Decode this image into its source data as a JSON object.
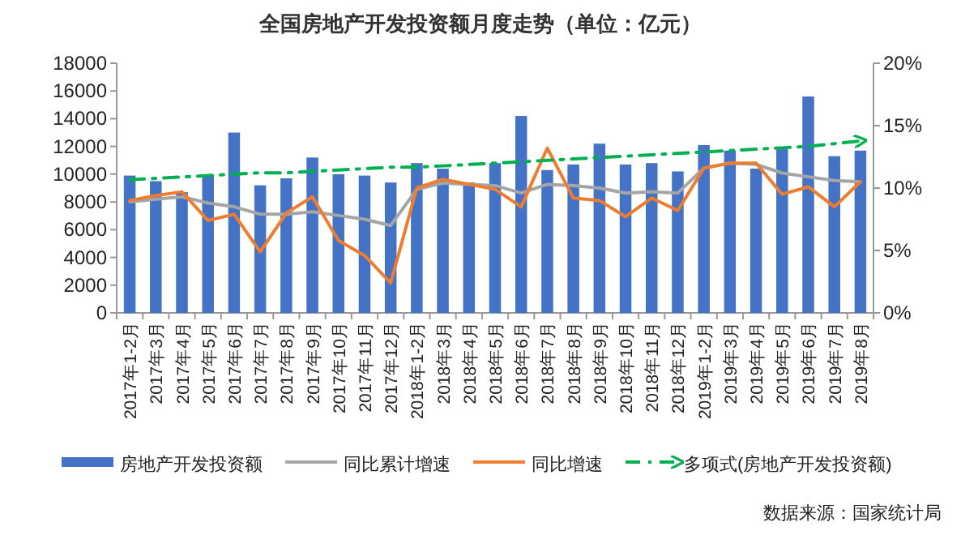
{
  "chart_data": {
    "type": "bar",
    "title": "全国房地产开发投资额月度走势（单位：亿元）",
    "categories": [
      "2017年1-2月",
      "2017年3月",
      "2017年4月",
      "2017年5月",
      "2017年6月",
      "2017年7月",
      "2017年8月",
      "2017年9月",
      "2017年10月",
      "2017年11月",
      "2017年12月",
      "2018年1-2月",
      "2018年3月",
      "2018年4月",
      "2018年5月",
      "2018年6月",
      "2018年7月",
      "2018年8月",
      "2018年9月",
      "2018年10月",
      "2018年11月",
      "2018年12月",
      "2019年1-2月",
      "2019年3月",
      "2019年4月",
      "2019年5月",
      "2019年6月",
      "2019年7月",
      "2019年8月"
    ],
    "series": [
      {
        "name": "房地产开发投资额",
        "color": "#4472c4",
        "values": [
          9900,
          9500,
          8700,
          9900,
          13000,
          9200,
          9700,
          11200,
          10000,
          9900,
          9400,
          10800,
          10400,
          9400,
          10800,
          14200,
          10300,
          10700,
          12200,
          10700,
          10800,
          10200,
          12100,
          11700,
          10400,
          11800,
          15600,
          11300,
          11700
        ]
      },
      {
        "name": "同比累计增速",
        "type": "line",
        "axis": "y2",
        "color": "#a5a5a5",
        "line_style": "solid",
        "values": [
          8.9,
          9.1,
          9.3,
          8.8,
          8.5,
          7.9,
          7.9,
          8.1,
          7.8,
          7.5,
          7.0,
          9.9,
          10.4,
          10.3,
          10.2,
          9.6,
          10.3,
          10.2,
          10.0,
          9.6,
          9.7,
          9.6,
          11.6,
          12.0,
          11.9,
          11.2,
          10.9,
          10.6,
          10.5
        ]
      },
      {
        "name": "同比增速",
        "type": "line",
        "axis": "y2",
        "color": "#ed7d31",
        "line_style": "solid",
        "values": [
          9.0,
          9.4,
          9.7,
          7.4,
          7.9,
          4.9,
          8.0,
          9.3,
          5.8,
          4.6,
          2.4,
          10.0,
          10.7,
          10.3,
          9.9,
          8.5,
          13.2,
          9.2,
          9.0,
          7.7,
          9.2,
          8.2,
          11.6,
          12.0,
          12.0,
          9.5,
          10.1,
          8.5,
          10.5
        ]
      },
      {
        "name": "多项式(房地产开发投资额)",
        "type": "line",
        "color": "#00b050",
        "line_style": "dashed",
        "values": [
          9600,
          9700,
          9800,
          9900,
          10000,
          10100,
          10100,
          10200,
          10300,
          10400,
          10500,
          10500,
          10600,
          10700,
          10800,
          10900,
          11000,
          11100,
          11200,
          11300,
          11400,
          11500,
          11600,
          11700,
          11800,
          11900,
          12000,
          12200,
          12400
        ]
      }
    ],
    "ylim": [
      0,
      18000
    ],
    "yticks": [
      0,
      2000,
      4000,
      6000,
      8000,
      10000,
      12000,
      14000,
      16000,
      18000
    ],
    "y2lim": [
      0,
      20
    ],
    "y2ticks": [
      {
        "value": 0,
        "label": "0%"
      },
      {
        "value": 5,
        "label": "5%"
      },
      {
        "value": 10,
        "label": "10%"
      },
      {
        "value": 15,
        "label": "15%"
      },
      {
        "value": 20,
        "label": "20%"
      }
    ],
    "legend": "bottom",
    "annotations": [
      "数据来源：国家统计局"
    ]
  }
}
